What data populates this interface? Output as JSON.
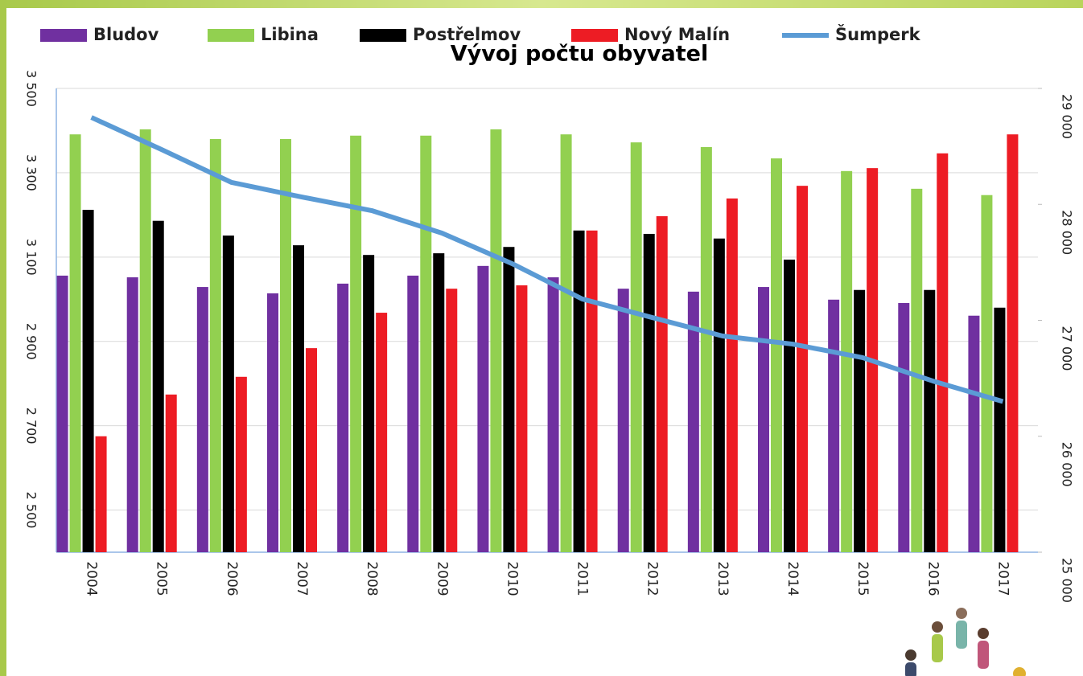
{
  "chart_data": {
    "type": "bar",
    "title": "Vývoj počtu obyvatel",
    "categories": [
      "2004",
      "2005",
      "2006",
      "2007",
      "2008",
      "2009",
      "2010",
      "2011",
      "2012",
      "2013",
      "2014",
      "2015",
      "2016",
      "2017"
    ],
    "series": [
      {
        "name": "Bludov",
        "color": "#7030a0",
        "values": [
          3056,
          3052,
          3029,
          3014,
          3037,
          3056,
          3079,
          3052,
          3025,
          3018,
          3029,
          2999,
          2991,
          2961
        ]
      },
      {
        "name": "Libina",
        "color": "#92d050",
        "values": [
          3391,
          3403,
          3380,
          3380,
          3388,
          3388,
          3403,
          3391,
          3372,
          3361,
          3334,
          3304,
          3262,
          3247
        ]
      },
      {
        "name": "Postřelmov",
        "color": "#000000",
        "values": [
          3212,
          3186,
          3151,
          3128,
          3105,
          3109,
          3124,
          3163,
          3155,
          3144,
          3094,
          3022,
          3022,
          2980
        ]
      },
      {
        "name": "Nový Malín",
        "color": "#ed1c24",
        "values": [
          2675,
          2774,
          2816,
          2884,
          2968,
          3025,
          3033,
          3163,
          3197,
          3239,
          3269,
          3311,
          3346,
          3391
        ]
      },
      {
        "name": "Šumperk",
        "color": "#5b9bd5",
        "type": "line",
        "axis": "y2",
        "values": [
          28750,
          28473,
          28189,
          28064,
          27946,
          27752,
          27489,
          27184,
          27024,
          26865,
          26795,
          26678,
          26477,
          26300
        ]
      }
    ],
    "ylim": [
      2400,
      3500
    ],
    "yticks": [
      {
        "value": 2500,
        "label": "2 500"
      },
      {
        "value": 2700,
        "label": "2 700"
      },
      {
        "value": 2900,
        "label": "2 900"
      },
      {
        "value": 3100,
        "label": "3 100"
      },
      {
        "value": 3300,
        "label": "3 300"
      },
      {
        "value": 3500,
        "label": "3 500"
      }
    ],
    "y2lim": [
      25000,
      29000
    ],
    "y2ticks": [
      {
        "value": 25000,
        "label": "25 000"
      },
      {
        "value": 26000,
        "label": "26 000"
      },
      {
        "value": 27000,
        "label": "27 000"
      },
      {
        "value": 28000,
        "label": "28 000"
      },
      {
        "value": 29000,
        "label": "29 000"
      }
    ],
    "grid": true,
    "legend": "top"
  }
}
